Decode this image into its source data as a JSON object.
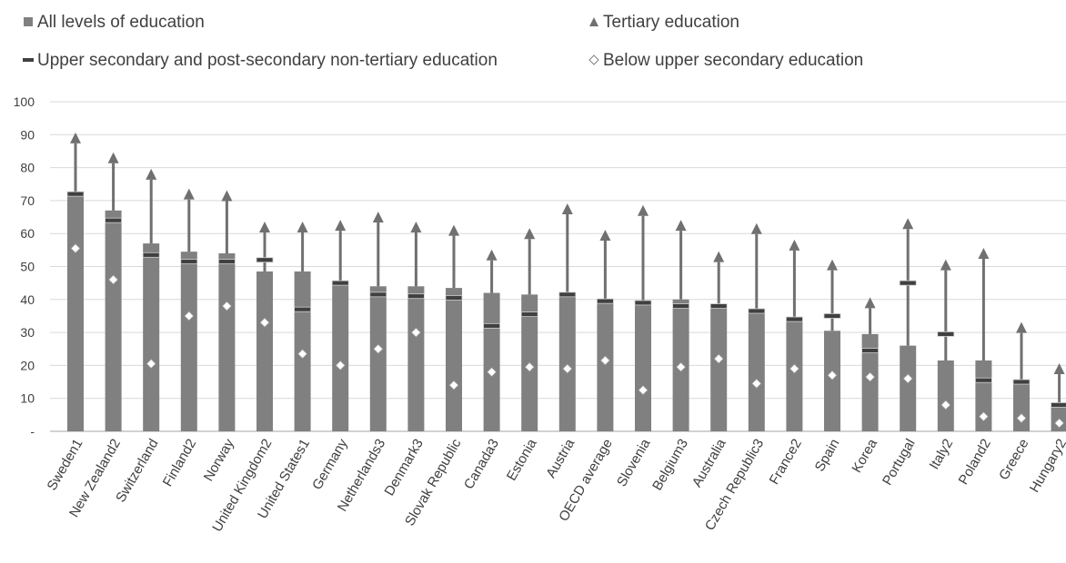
{
  "legend": {
    "all_levels": "All levels of education",
    "tertiary": "Tertiary education",
    "upper_secondary": "Upper secondary and post-secondary non-tertiary education",
    "below_upper_secondary": "Below upper secondary education"
  },
  "chart_data": {
    "type": "bar",
    "title": "",
    "xlabel": "",
    "ylabel": "",
    "ylim": [
      0,
      100
    ],
    "yticks": [
      0,
      10,
      20,
      30,
      40,
      50,
      60,
      70,
      80,
      90,
      100
    ],
    "ytick_labels": [
      "-",
      "10",
      "20",
      "30",
      "40",
      "50",
      "60",
      "70",
      "80",
      "90",
      "100"
    ],
    "grid": true,
    "legend_position": "top",
    "categories": [
      "Sweden1",
      "New Zealand2",
      "Switzerland",
      "Finland2",
      "Norway",
      "United Kingdom2",
      "United States1",
      "Germany",
      "Netherlands3",
      "Denmark3",
      "Slovak Republic",
      "Canada3",
      "Estonia",
      "Austria",
      "OECD average",
      "Slovenia",
      "Belgium3",
      "Australia",
      "Czech Republic3",
      "France2",
      "Spain",
      "Korea",
      "Portugal",
      "Italy2",
      "Poland2",
      "Greece",
      "Hungary2"
    ],
    "series": [
      {
        "name": "All levels of education",
        "marker": "bar",
        "values": [
          72.5,
          67,
          57,
          54.5,
          54,
          48.5,
          48.5,
          45,
          44,
          44,
          43.5,
          42,
          41.5,
          41.5,
          39.5,
          39.5,
          40,
          38,
          36.5,
          34.5,
          30.5,
          29.5,
          26,
          21.5,
          21.5,
          15,
          8
        ]
      },
      {
        "name": "Tertiary education",
        "marker": "triangle",
        "values": [
          89,
          83,
          78,
          72,
          71.5,
          62,
          62,
          62.5,
          65,
          62,
          61,
          53.5,
          60,
          67.5,
          59.5,
          67,
          62.5,
          53,
          61.5,
          56.5,
          50.5,
          39,
          63,
          50.5,
          54,
          31.5,
          19
        ]
      },
      {
        "name": "Upper secondary and post-secondary non-tertiary education",
        "marker": "dash",
        "values": [
          72,
          64,
          53.5,
          51.5,
          51.5,
          52,
          37,
          45,
          41.5,
          41,
          40.5,
          32,
          35.5,
          41.5,
          39.5,
          39,
          38,
          38,
          36.5,
          34,
          35,
          24.5,
          45,
          29.5,
          15.5,
          15,
          8
        ]
      },
      {
        "name": "Below upper secondary education",
        "marker": "diamond",
        "values": [
          55.5,
          46,
          20.5,
          35,
          38,
          33,
          23.5,
          20,
          25,
          30,
          14,
          18,
          19.5,
          19,
          21.5,
          12.5,
          19.5,
          22,
          14.5,
          19,
          17,
          16.5,
          16,
          8,
          4.5,
          4,
          2.5
        ]
      }
    ],
    "colors": {
      "bar": "#808080",
      "triangle": "#707070",
      "grid": "#d9d9d9",
      "axis": "#a6a6a6"
    }
  }
}
